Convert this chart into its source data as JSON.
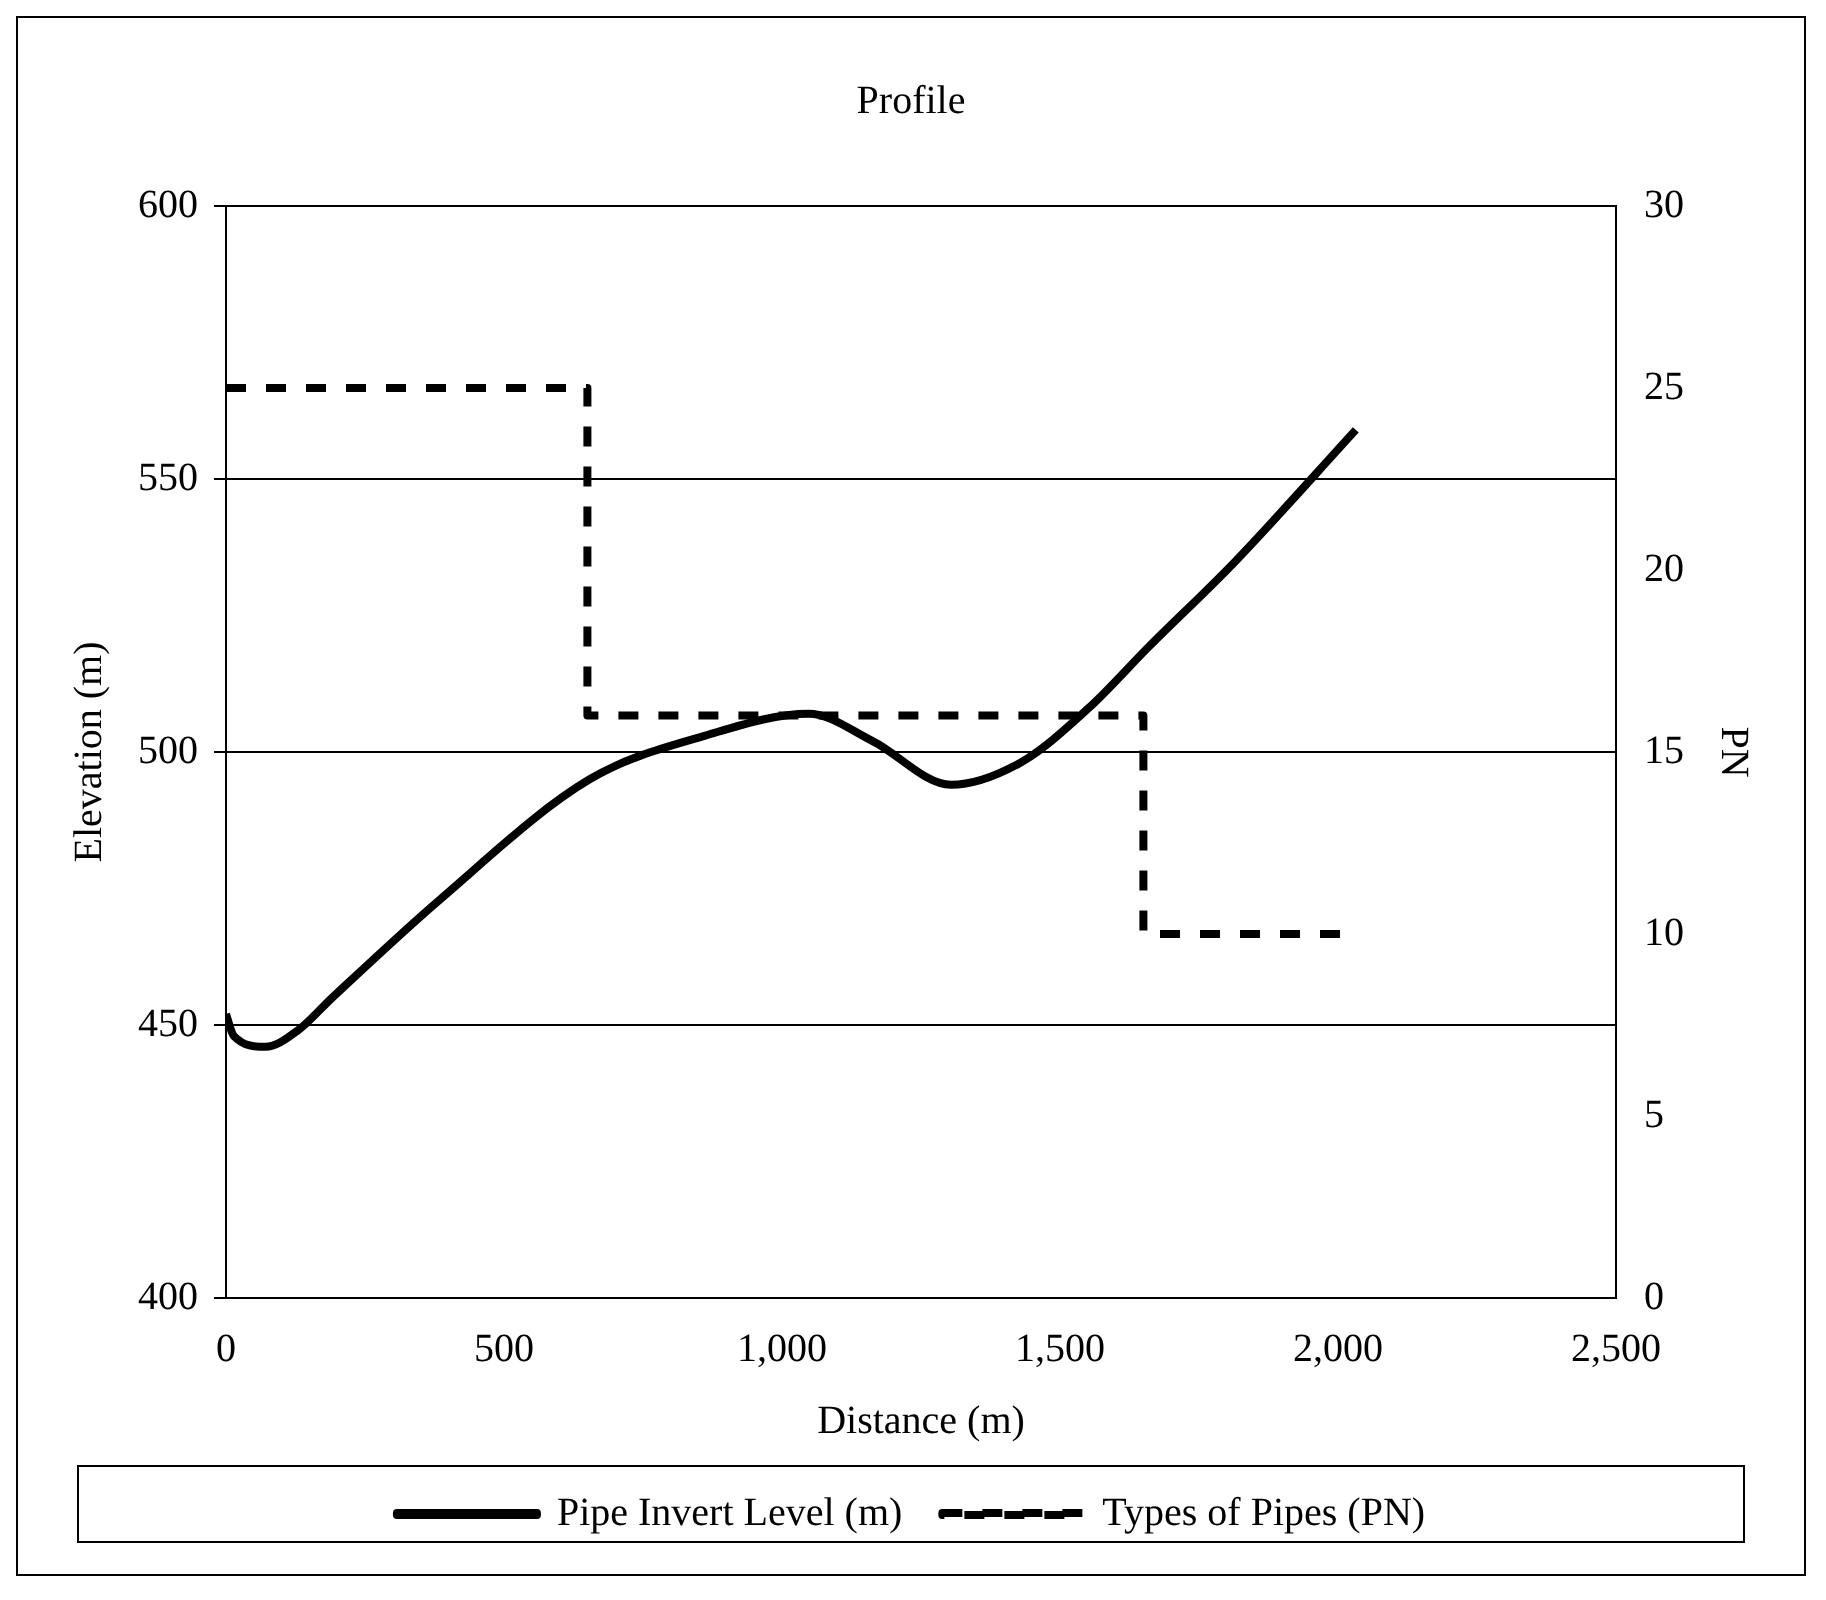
{
  "chart_data": {
    "type": "line",
    "title": "Profile",
    "xlabel": "Distance (m)",
    "ylabel": "Elevation (m)",
    "y2label": "PN",
    "xlim": [
      0,
      2500
    ],
    "xticks": [
      0,
      500,
      {
        "value": 1000,
        "label": "1,000"
      },
      {
        "value": 1500,
        "label": "1,500"
      },
      {
        "value": 2000,
        "label": "2,000"
      },
      {
        "value": 2500,
        "label": "2,500"
      }
    ],
    "ylim": [
      400,
      600
    ],
    "yticks": [
      400,
      450,
      500,
      550,
      600
    ],
    "y2lim": [
      0,
      30
    ],
    "y2ticks": [
      0,
      5,
      10,
      15,
      20,
      25,
      30
    ],
    "grid": "y",
    "legend": "bottom",
    "marker": "none",
    "series": [
      {
        "name": "Pipe Invert Level (m)",
        "color": "#000000",
        "line_style": "solid",
        "x": [
          0,
          14,
          71,
          129,
          191,
          385,
          654,
          862,
          1048,
          1163,
          1304,
          1428,
          1551,
          1657,
          1816,
          2032
        ],
        "values": [
          452,
          448,
          446,
          449,
          455,
          473,
          495,
          503,
          507,
          502,
          494,
          498,
          508,
          519,
          535,
          559
        ]
      },
      {
        "name": "Types of Pipes (PN)",
        "color": "#000000",
        "type": "step",
        "axis": "y2",
        "line_style": "dashed",
        "x": [
          0,
          650,
          1650,
          2030
        ],
        "values": [
          25,
          16,
          10,
          10
        ]
      }
    ]
  }
}
